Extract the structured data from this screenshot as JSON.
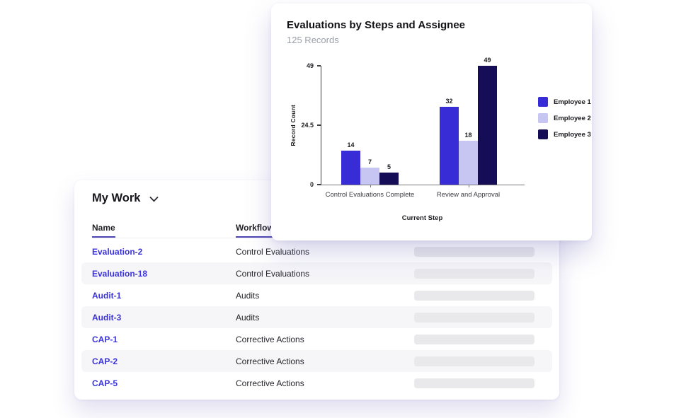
{
  "chart_data": {
    "type": "bar",
    "title": "Evaluations by Steps and Assignee",
    "subtitle": "125 Records",
    "categories": [
      "Control Evaluations Complete",
      "Review and Approval"
    ],
    "series": [
      {
        "name": "Employee 1",
        "values": [
          14,
          32
        ],
        "color": "#372CD5"
      },
      {
        "name": "Employee 2",
        "values": [
          7,
          18
        ],
        "color": "#C7C5F2"
      },
      {
        "name": "Employee 3",
        "values": [
          5,
          49
        ],
        "color": "#150E57"
      }
    ],
    "xlabel": "Current Step",
    "ylabel": "Record Count",
    "yticks": [
      0,
      24.5,
      49
    ],
    "ylim": [
      0,
      49
    ],
    "legend_position": "right",
    "grid": false,
    "bar_value_labels": true
  },
  "table_card": {
    "title": "My Work",
    "columns": [
      {
        "label": "Name"
      },
      {
        "label": "Workflow"
      }
    ],
    "rows": [
      {
        "name": "Evaluation-2",
        "workflow": "Control Evaluations"
      },
      {
        "name": "Evaluation-18",
        "workflow": "Control Evaluations"
      },
      {
        "name": "Audit-1",
        "workflow": "Audits"
      },
      {
        "name": "Audit-3",
        "workflow": "Audits"
      },
      {
        "name": "CAP-1",
        "workflow": "Corrective Actions"
      },
      {
        "name": "CAP-2",
        "workflow": "Corrective Actions"
      },
      {
        "name": "CAP-5",
        "workflow": "Corrective Actions"
      }
    ]
  },
  "colors": {
    "link": "#3B33DB",
    "header_underline": "#4E46B4",
    "row_alt": "#F6F6F9",
    "placeholder": "#E9E9EC"
  }
}
